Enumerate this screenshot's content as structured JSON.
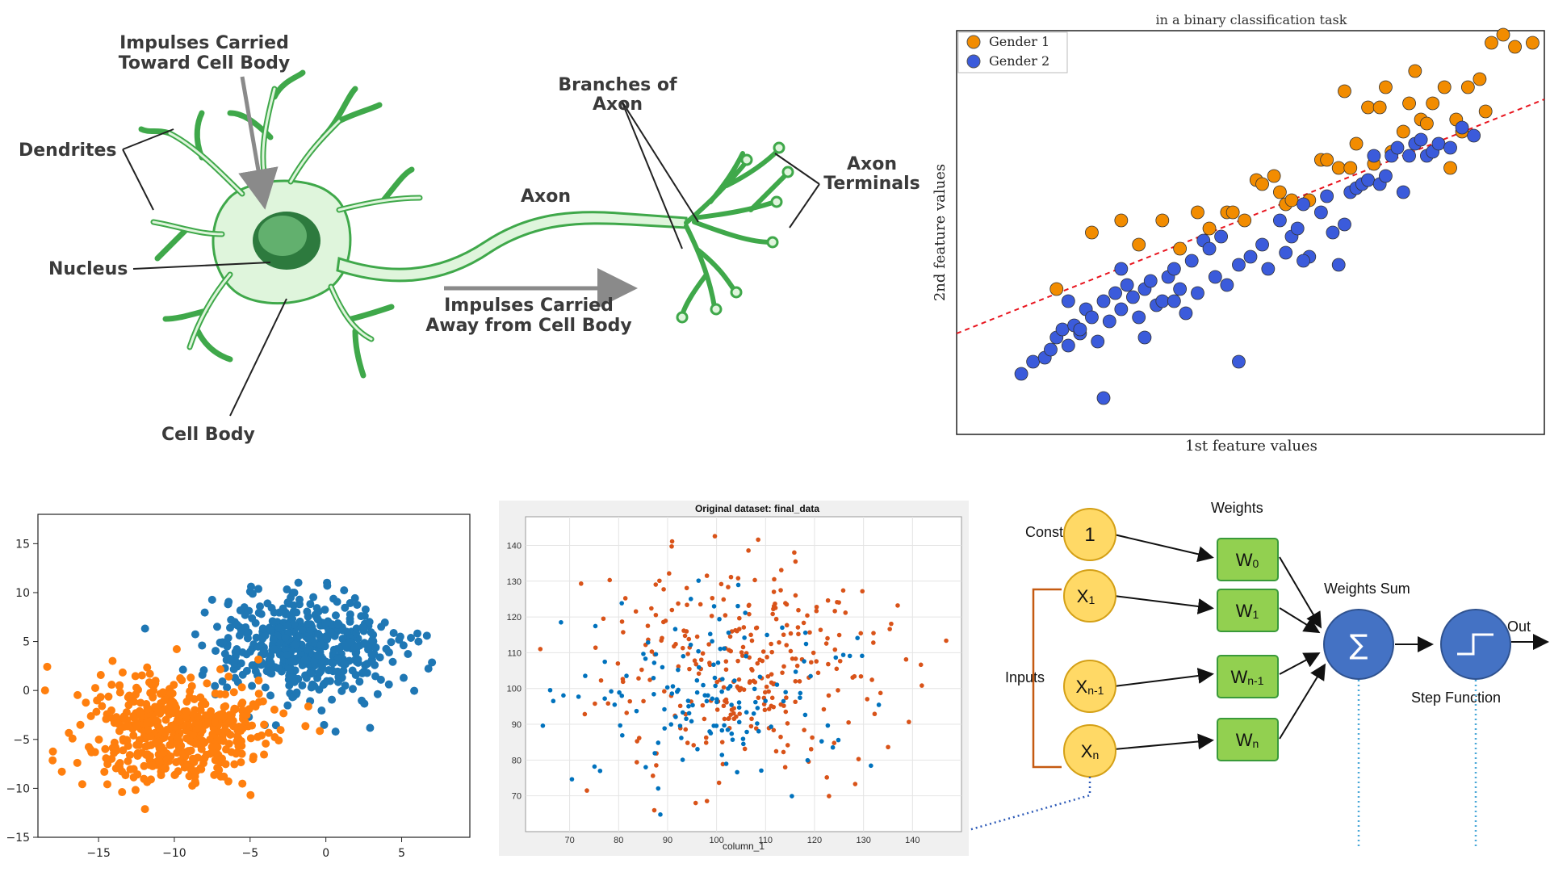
{
  "neuron": {
    "labels": {
      "impulses_toward": [
        "Impulses Carried",
        "Toward Cell Body"
      ],
      "dendrites": "Dendrites",
      "nucleus": "Nucleus",
      "cell_body": "Cell Body",
      "axon": "Axon",
      "branches": [
        "Branches of",
        "Axon"
      ],
      "terminals": [
        "Axon",
        "Terminals"
      ],
      "impulses_away": [
        "Impulses Carried",
        "Away from Cell Body"
      ]
    },
    "colors": {
      "stroke": "#3fa84a",
      "fill": "#dff5dc",
      "nucleus": "#2d7a3e",
      "nucleus_light": "#62b06e"
    }
  },
  "chart_data": [
    {
      "type": "scatter",
      "title": "in a binary classification task",
      "xlabel": "1st feature values",
      "ylabel": "2nd feature values",
      "legend": "top-left",
      "grid": false,
      "xlim": [
        0,
        10
      ],
      "ylim": [
        0,
        10
      ],
      "series": [
        {
          "name": "Gender 1",
          "color": "#f28c00",
          "x": [
            1.7,
            2.3,
            2.8,
            3.1,
            3.5,
            3.8,
            4.1,
            4.3,
            4.6,
            4.7,
            4.9,
            5.1,
            5.2,
            5.4,
            5.5,
            5.6,
            5.7,
            6.0,
            6.2,
            6.3,
            6.5,
            6.6,
            6.7,
            6.8,
            7.0,
            7.1,
            7.2,
            7.3,
            7.4,
            7.6,
            7.7,
            7.8,
            7.9,
            8.0,
            8.1,
            8.3,
            8.4,
            8.5,
            8.6,
            8.7,
            8.9,
            9.0,
            9.1,
            9.3,
            9.5,
            9.8
          ],
          "y": [
            3.6,
            5.0,
            5.3,
            4.7,
            5.3,
            4.6,
            5.5,
            5.1,
            5.5,
            5.5,
            5.3,
            6.3,
            6.2,
            6.4,
            6.0,
            5.7,
            5.8,
            5.8,
            6.8,
            6.8,
            6.6,
            8.5,
            6.6,
            7.2,
            8.1,
            6.7,
            8.1,
            8.6,
            7.0,
            7.5,
            8.2,
            9.0,
            7.8,
            7.7,
            8.2,
            8.6,
            6.6,
            7.8,
            7.5,
            8.6,
            8.8,
            8.0,
            9.7,
            9.9,
            9.6,
            9.7
          ]
        },
        {
          "name": "Gender 2",
          "color": "#3b5bdb",
          "x": [
            1.1,
            1.3,
            1.5,
            1.6,
            1.7,
            1.8,
            1.9,
            2.0,
            2.1,
            2.2,
            2.3,
            2.4,
            2.5,
            2.6,
            2.7,
            2.8,
            2.9,
            3.0,
            3.1,
            3.2,
            3.3,
            3.4,
            3.5,
            3.6,
            3.7,
            3.8,
            3.9,
            4.0,
            4.1,
            4.2,
            4.3,
            4.5,
            4.6,
            4.8,
            5.0,
            5.2,
            5.3,
            5.5,
            5.6,
            5.7,
            5.8,
            5.9,
            6.0,
            6.2,
            6.3,
            6.5,
            6.6,
            6.7,
            6.8,
            6.9,
            7.0,
            7.1,
            7.2,
            7.3,
            7.4,
            7.5,
            7.6,
            7.7,
            7.8,
            7.9,
            8.0,
            8.1,
            8.2,
            8.4,
            8.6,
            8.8,
            2.5,
            4.8,
            3.2,
            2.1,
            1.9,
            2.8,
            3.7,
            4.4,
            5.9,
            6.4
          ],
          "y": [
            1.5,
            1.8,
            1.9,
            2.1,
            2.4,
            2.6,
            2.2,
            2.7,
            2.5,
            3.1,
            2.9,
            2.3,
            3.3,
            2.8,
            3.5,
            3.1,
            3.7,
            3.4,
            2.9,
            3.6,
            3.8,
            3.2,
            3.3,
            3.9,
            4.1,
            3.6,
            3.0,
            4.3,
            3.5,
            4.8,
            4.6,
            4.9,
            3.7,
            4.2,
            4.4,
            4.7,
            4.1,
            5.3,
            4.5,
            4.9,
            5.1,
            5.7,
            4.4,
            5.5,
            5.9,
            4.2,
            5.2,
            6.0,
            6.1,
            6.2,
            6.3,
            6.9,
            6.2,
            6.4,
            6.9,
            7.1,
            6.0,
            6.9,
            7.2,
            7.3,
            6.9,
            7.0,
            7.2,
            7.1,
            7.6,
            7.4,
            0.9,
            1.8,
            2.4,
            2.6,
            3.3,
            4.1,
            3.3,
            3.9,
            4.3,
            5.0
          ]
        }
      ],
      "decision_line": {
        "x": [
          0,
          10
        ],
        "y": [
          2.5,
          8.3
        ],
        "color": "#e8141e",
        "style": "dashed"
      }
    },
    {
      "type": "scatter",
      "title": "",
      "xlabel": "",
      "ylabel": "",
      "xlim": [
        -19,
        9.5
      ],
      "ylim": [
        -15,
        18
      ],
      "xticks": [
        -15,
        -10,
        -5,
        0,
        5
      ],
      "yticks": [
        15,
        10,
        5,
        0,
        -5,
        -10,
        -15
      ],
      "series": [
        {
          "name": "",
          "color": "#1f77b4",
          "center": [
            -1.5,
            4.5
          ],
          "spread": [
            3.0,
            2.6
          ],
          "count": 500
        },
        {
          "name": "",
          "color": "#ff7f0e",
          "center": [
            -10.0,
            -4.0
          ],
          "spread": [
            3.0,
            2.8
          ],
          "count": 500
        }
      ]
    },
    {
      "type": "scatter",
      "title": "Original dataset: final_data",
      "xlabel": "column_1",
      "ylabel": "",
      "xlim": [
        61,
        150
      ],
      "ylim": [
        60,
        148
      ],
      "xticks": [
        70,
        80,
        90,
        100,
        110,
        120,
        130,
        140
      ],
      "yticks": [
        140,
        130,
        120,
        110,
        100,
        90,
        80,
        70
      ],
      "grid": true,
      "series": [
        {
          "name": "",
          "color": "#d95319",
          "center": [
            105,
            105
          ],
          "spread": [
            16,
            15
          ],
          "count": 300
        },
        {
          "name": "",
          "color": "#0072bd",
          "center": [
            100,
            98
          ],
          "spread": [
            14,
            14
          ],
          "count": 150
        }
      ]
    }
  ],
  "perceptron": {
    "constant_label": "Constant",
    "weights_label": "Weights",
    "weights_sum_label": "Weights Sum",
    "inputs_label": "Inputs",
    "step_label": "Step Function",
    "out_label": "Out",
    "sum_symbol": "∑",
    "nodes": [
      {
        "main": "1",
        "sub": ""
      },
      {
        "main": "X",
        "sub": "1"
      },
      {
        "main": "X",
        "sub": "n-1"
      },
      {
        "main": "X",
        "sub": "n"
      }
    ],
    "weights": [
      {
        "main": "W",
        "sub": "0"
      },
      {
        "main": "W",
        "sub": "1"
      },
      {
        "main": "W",
        "sub": "n-1"
      },
      {
        "main": "W",
        "sub": "n"
      }
    ],
    "colors": {
      "input_fill": "#ffd966",
      "input_stroke": "#d4a017",
      "weight_fill": "#92d050",
      "weight_stroke": "#3a9a3a",
      "sum_fill": "#4472c4",
      "bracket": "#c55a11",
      "dotted": "#4aa8d8"
    }
  }
}
